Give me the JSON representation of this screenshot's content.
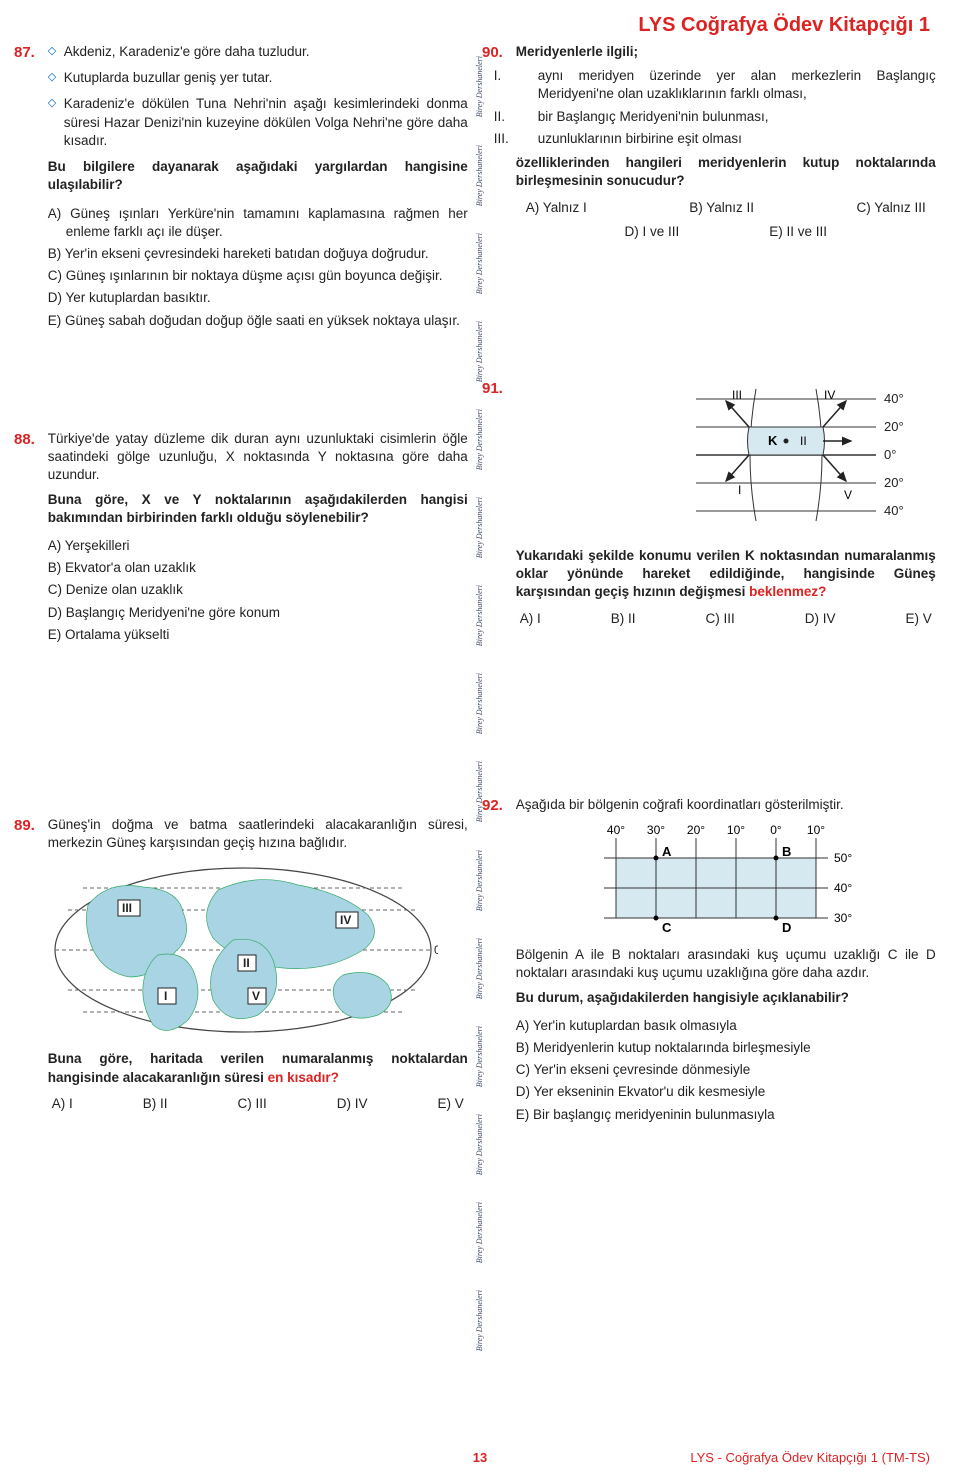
{
  "header": {
    "title": "LYS Coğrafya Ödev Kitapçığı 1",
    "color": "#d22"
  },
  "watermark": "Birey Dershaneleri",
  "footer": {
    "page_number": "13",
    "right_text": "LYS - Coğrafya Ödev Kitapçığı 1 (TM-TS)",
    "right_color": "#d22"
  },
  "q87": {
    "number": "87.",
    "number_color": "#d22",
    "bullet_color": "#06c",
    "bullets": [
      "Akdeniz, Karadeniz'e göre daha tuzludur.",
      "Kutuplarda buzullar geniş yer tutar.",
      "Karadeniz'e dökülen Tuna Nehri'nin aşağı kesimlerindeki donma süresi Hazar Denizi'nin kuzeyine dökülen Volga Nehri'ne göre daha kısadır."
    ],
    "prompt": "Bu bilgilere dayanarak aşağıdaki yargılardan hangisine ulaşılabilir?",
    "options": {
      "A": "Güneş ışınları Yerküre'nin tamamını kaplamasına rağmen her enleme farklı açı ile düşer.",
      "B": "Yer'in ekseni çevresindeki hareketi batıdan doğuya doğrudur.",
      "C": "Güneş ışınlarının bir noktaya düşme açısı gün boyunca değişir.",
      "D": "Yer kutuplardan basıktır.",
      "E": "Güneş sabah doğudan doğup öğle saati en yüksek noktaya ulaşır."
    }
  },
  "q88": {
    "number": "88.",
    "number_color": "#d22",
    "stem": "Türkiye'de yatay düzleme dik duran aynı uzunluktaki cisimlerin öğle saatindeki gölge uzunluğu, X noktasında Y noktasına göre daha uzundur.",
    "prompt": "Buna göre, X ve Y noktalarının aşağıdakilerden hangisi bakımından birbirinden farklı olduğu söylenebilir?",
    "options": {
      "A": "Yerşekilleri",
      "B": "Ekvator'a olan uzaklık",
      "C": "Denize olan uzaklık",
      "D": "Başlangıç Meridyeni'ne göre konum",
      "E": "Ortalama yükselti"
    }
  },
  "q89": {
    "number": "89.",
    "number_color": "#d22",
    "stem": "Güneş'in doğma ve batma saatlerindeki alacakaranlığın süresi, merkezin Güneş karşısından geçiş hızına bağlıdır.",
    "prompt_before": "Buna göre, haritada verilen numaralanmış noktalardan hangisinde alacakaranlığın süresi ",
    "prompt_highlight": "en kısadır?",
    "options": {
      "A": "A) I",
      "B": "B) II",
      "C": "C) III",
      "D": "D) IV",
      "E": "E) V"
    },
    "map": {
      "labels": [
        "I",
        "II",
        "III",
        "IV",
        "V"
      ],
      "equator_label": "0°",
      "land_color": "#a9d4e3",
      "line_color": "#555"
    }
  },
  "q90": {
    "number": "90.",
    "number_color": "#d22",
    "title": "Meridyenlerle ilgili;",
    "statements": {
      "I": "aynı meridyen üzerinde yer alan merkezlerin Başlangıç Meridyeni'ne olan uzaklıklarının farklı olması,",
      "II": "bir Başlangıç Meridyeni'nin bulunması,",
      "III": "uzunluklarının birbirine eşit olması"
    },
    "prompt": "özelliklerinden hangileri meridyenlerin kutup noktalarında birleşmesinin sonucudur?",
    "options": {
      "A": "A) Yalnız I",
      "B": "B) Yalnız II",
      "C": "C) Yalnız III",
      "D": "D) I ve III",
      "E": "E) II ve III"
    }
  },
  "q91": {
    "number": "91.",
    "number_color": "#d22",
    "diagram": {
      "lat_labels_top": [
        "40°",
        "20°",
        "0°"
      ],
      "lat_labels_bottom": [
        "20°",
        "40°"
      ],
      "arrows": [
        "I",
        "II",
        "III",
        "IV",
        "V"
      ],
      "point_label": "K",
      "fill_color": "#d6e8f0",
      "line_color": "#333"
    },
    "prompt_before": "Yukarıdaki şekilde konumu verilen K noktasından numaralanmış oklar yönünde hareket edildiğinde, hangisinde Güneş karşısından geçiş hızının değişmesi ",
    "prompt_highlight": "beklenmez?",
    "options": {
      "A": "A) I",
      "B": "B) II",
      "C": "C) III",
      "D": "D) IV",
      "E": "E) V"
    }
  },
  "q92": {
    "number": "92.",
    "number_color": "#d22",
    "stem": "Aşağıda bir bölgenin coğrafi koordinatları gösterilmiştir.",
    "diagram": {
      "lon_labels": [
        "40°",
        "30°",
        "20°",
        "10°",
        "0°",
        "10°"
      ],
      "lat_labels": [
        "50°",
        "40°",
        "30°"
      ],
      "points": [
        "A",
        "B",
        "C",
        "D"
      ],
      "fill_color": "#d6e8f0",
      "line_color": "#333"
    },
    "para": "Bölgenin A ile B noktaları arasındaki kuş uçumu uzaklığı C ile D noktaları arasındaki kuş uçumu uzaklığına göre daha azdır.",
    "prompt": "Bu durum, aşağıdakilerden hangisiyle açıklanabilir?",
    "options": {
      "A": "Yer'in kutuplardan basık olmasıyla",
      "B": "Meridyenlerin kutup noktalarında birleşmesiyle",
      "C": "Yer'in ekseni çevresinde dönmesiyle",
      "D": "Yer ekseninin Ekvator'u dik kesmesiyle",
      "E": "Bir başlangıç meridyeninin bulunmasıyla"
    }
  }
}
